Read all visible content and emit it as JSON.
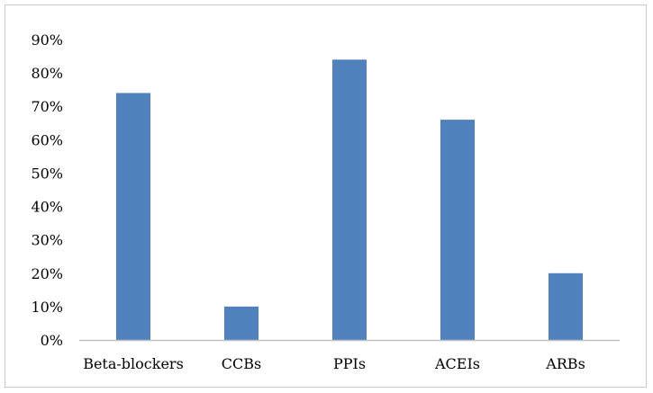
{
  "chart_data": {
    "type": "bar",
    "title": "",
    "xlabel": "",
    "ylabel": "",
    "categories": [
      "Beta-blockers",
      "CCBs",
      "PPIs",
      "ACEIs",
      "ARBs"
    ],
    "values": [
      74,
      10,
      84,
      66,
      20
    ],
    "ylim": [
      0,
      90
    ],
    "yticks": [
      0,
      10,
      20,
      30,
      40,
      50,
      60,
      70,
      80,
      90
    ],
    "ytick_labels": [
      "0%",
      "10%",
      "20%",
      "30%",
      "40%",
      "50%",
      "60%",
      "70%",
      "80%",
      "90%"
    ],
    "grid": false,
    "legend": "none",
    "bar_color": "#4f81bd",
    "axis_color": "#bfbfbf"
  }
}
